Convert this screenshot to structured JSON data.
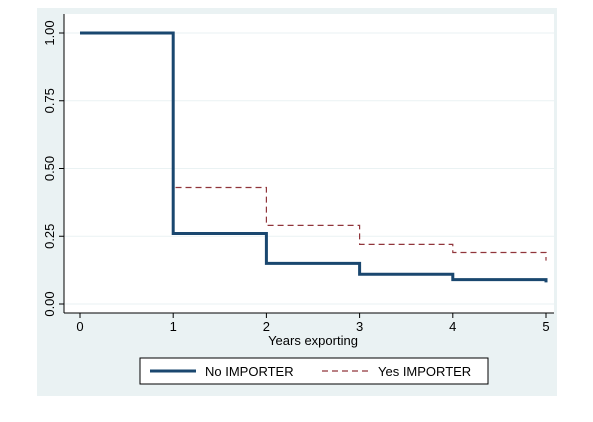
{
  "colors": {
    "background": "#ffffff",
    "plot_region": "#eaf2f3",
    "plot_area": "#ffffff",
    "grid": "#eaf2f3",
    "series_no": "#1a476f",
    "series_yes": "#90353b"
  },
  "chart_data": {
    "type": "line",
    "title": "",
    "xlabel": "Years exporting",
    "ylabel": "",
    "xlim": [
      0,
      5
    ],
    "ylim": [
      0,
      1
    ],
    "x_ticks": [
      0,
      1,
      2,
      3,
      4,
      5
    ],
    "y_ticks": [
      0,
      0.25,
      0.5,
      0.75,
      1
    ],
    "x_tick_labels": [
      "0",
      "1",
      "2",
      "3",
      "4",
      "5"
    ],
    "y_tick_labels": [
      "0.00",
      "0.25",
      "0.50",
      "0.75",
      "1.00"
    ],
    "grid": true,
    "legend_position": "bottom",
    "step": true,
    "series": [
      {
        "name": "No IMPORTER",
        "style": "solid",
        "x": [
          0,
          1,
          2,
          3,
          4,
          5
        ],
        "values": [
          1.0,
          0.26,
          0.15,
          0.11,
          0.09,
          0.08
        ]
      },
      {
        "name": "Yes IMPORTER",
        "style": "dashed",
        "x": [
          0,
          1,
          2,
          3,
          4,
          5
        ],
        "values": [
          1.0,
          0.43,
          0.29,
          0.22,
          0.19,
          0.16
        ]
      }
    ]
  }
}
